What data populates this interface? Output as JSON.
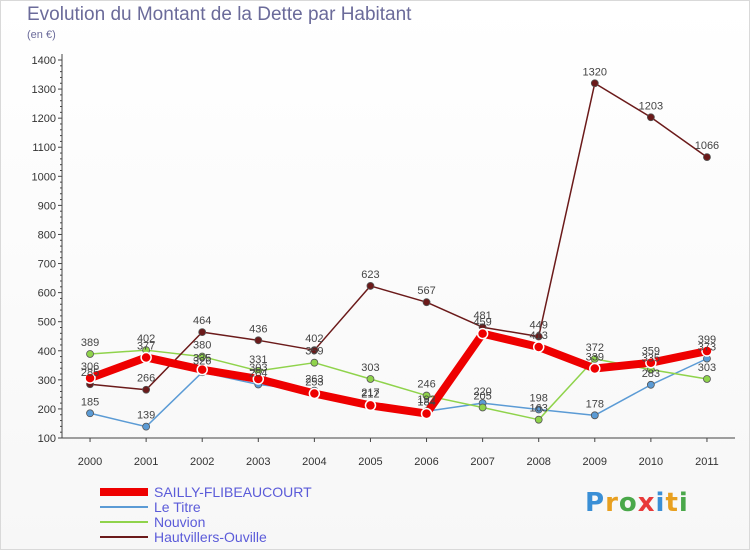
{
  "header": {
    "title": "Evolution du Montant de la Dette par Habitant",
    "unit": "(en €)"
  },
  "logo": {
    "text": "Proxiti",
    "colors": [
      "#3a8fd6",
      "#e8a020",
      "#4aa84a",
      "#e83a3a",
      "#3a8fd6",
      "#e8a020",
      "#4aa84a"
    ]
  },
  "chart_data": {
    "type": "line",
    "title": "Evolution du Montant de la Dette par Habitant",
    "ylabel": "(en €)",
    "xlabel": "",
    "x": [
      "2000",
      "2001",
      "2002",
      "2003",
      "2004",
      "2005",
      "2006",
      "2007",
      "2008",
      "2009",
      "2010",
      "2011"
    ],
    "yticks": [
      "100",
      "200",
      "300",
      "400",
      "500",
      "600",
      "700",
      "800",
      "900",
      "1000",
      "1100",
      "1200",
      "1300",
      "1400"
    ],
    "ylim": [
      100,
      1400
    ],
    "grid": false,
    "legend_position": "bottom-left",
    "series": [
      {
        "name": "SAILLY-FLIBEAUCOURT",
        "color": "#ee0000",
        "values": [
          306,
          377,
          335,
          303,
          253,
          212,
          184,
          459,
          413,
          339,
          359,
          399
        ]
      },
      {
        "name": "Le Titre",
        "color": "#5b9bd5",
        "values": [
          185,
          139,
          326,
          284,
          263,
          217,
          192,
          220,
          198,
          178,
          283,
          373
        ]
      },
      {
        "name": "Nouvion",
        "color": "#8fd34b",
        "values": [
          389,
          402,
          380,
          331,
          359,
          303,
          246,
          205,
          163,
          372,
          335,
          303
        ]
      },
      {
        "name": "Hautvillers-Ouville",
        "color": "#6b1a1a",
        "values": [
          285,
          266,
          464,
          436,
          402,
          623,
          567,
          481,
          449,
          1320,
          1203,
          1066
        ]
      }
    ]
  }
}
